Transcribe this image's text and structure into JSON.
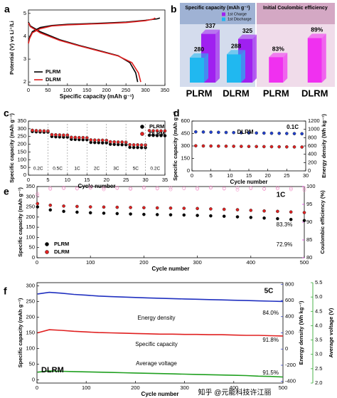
{
  "watermark": "知乎 @元能科技许江丽",
  "chart_data": [
    {
      "type": "line",
      "panel_label": "a",
      "xlabel": "Specific capacity (mAh g⁻¹)",
      "ylabel": "Potential (V) vs Li⁺/Li",
      "xlim": [
        0,
        350
      ],
      "xticks": [
        0,
        50,
        100,
        150,
        200,
        250,
        300,
        350
      ],
      "ylim": [
        1.85,
        5.15
      ],
      "yticks": [
        2,
        3,
        4,
        5
      ],
      "legend": "lower left",
      "series": [
        {
          "name": "PLRM",
          "color": "#000000",
          "x": [
            0,
            3,
            10,
            30,
            60,
            100,
            150,
            200,
            250,
            300,
            330,
            337,
            null,
            0,
            5,
            30,
            80,
            130,
            180,
            230,
            260,
            275,
            280
          ],
          "values": [
            3.72,
            3.95,
            4.2,
            4.38,
            4.47,
            4.52,
            4.55,
            4.58,
            4.62,
            4.7,
            4.76,
            4.8,
            null,
            4.62,
            4.45,
            4.2,
            3.85,
            3.6,
            3.38,
            3.15,
            2.85,
            2.4,
            2.0
          ]
        },
        {
          "name": "DLRM",
          "color": "#e02020",
          "x": [
            0,
            3,
            10,
            30,
            60,
            100,
            150,
            200,
            250,
            300,
            320,
            325,
            null,
            0,
            5,
            30,
            80,
            130,
            180,
            230,
            265,
            282,
            288
          ],
          "values": [
            3.68,
            3.9,
            4.15,
            4.33,
            4.45,
            4.5,
            4.53,
            4.56,
            4.6,
            4.68,
            4.75,
            4.8,
            null,
            4.58,
            4.42,
            4.15,
            3.82,
            3.58,
            3.36,
            3.14,
            2.85,
            2.4,
            2.0
          ]
        }
      ]
    },
    {
      "type": "bar",
      "panel_label": "b",
      "title": "Specific capacity (mAh g⁻¹)",
      "categories": [
        "PLRM",
        "DLRM"
      ],
      "ylim": [
        220,
        350
      ],
      "series": [
        {
          "name": "1st Charge",
          "color": "#a020f0",
          "values": [
            337,
            325
          ]
        },
        {
          "name": "1st Discharge",
          "color": "#20b8f0",
          "values": [
            280,
            288
          ]
        }
      ]
    },
    {
      "type": "bar",
      "title": "Initial Coulombic efficiency",
      "categories": [
        "PLRM",
        "DLRM"
      ],
      "ylim": [
        75,
        92
      ],
      "color": "#f030f0",
      "values": [
        83,
        89
      ],
      "value_labels": [
        "83%",
        "89%"
      ]
    },
    {
      "type": "scatter",
      "panel_label": "c",
      "xlabel": "Cycle number",
      "ylabel": "Specific capacity (mAh g⁻¹)",
      "xlim": [
        0,
        35
      ],
      "xticks": [
        0,
        5,
        10,
        15,
        20,
        25,
        30,
        35
      ],
      "ylim": [
        0,
        350
      ],
      "yticks": [
        0,
        50,
        100,
        150,
        200,
        250,
        300,
        350
      ],
      "legend": "upper right",
      "annotations": [
        "0.2C",
        "0.5C",
        "1C",
        "2C",
        "3C",
        "5C",
        "0.2C"
      ],
      "x": [
        1,
        2,
        3,
        4,
        5,
        6,
        7,
        8,
        9,
        10,
        11,
        12,
        13,
        14,
        15,
        16,
        17,
        18,
        19,
        20,
        21,
        22,
        23,
        24,
        25,
        26,
        27,
        28,
        29,
        30,
        31,
        32,
        33,
        34,
        35
      ],
      "series": [
        {
          "name": "PLRM",
          "color": "#000000",
          "values": [
            282,
            280,
            279,
            278,
            278,
            250,
            248,
            247,
            246,
            246,
            232,
            231,
            230,
            229,
            229,
            212,
            211,
            210,
            209,
            209,
            200,
            199,
            198,
            197,
            197,
            180,
            179,
            179,
            178,
            178,
            258,
            257,
            256,
            256,
            255
          ]
        },
        {
          "name": "DLRM",
          "color": "#e02020",
          "values": [
            290,
            288,
            287,
            286,
            286,
            262,
            261,
            260,
            259,
            259,
            245,
            244,
            243,
            243,
            242,
            228,
            227,
            226,
            226,
            225,
            216,
            215,
            214,
            214,
            213,
            197,
            196,
            196,
            195,
            195,
            288,
            287,
            287,
            286,
            286
          ]
        }
      ]
    },
    {
      "type": "scatter",
      "panel_label": "d",
      "xlabel": "Cycle number",
      "ylabel": "Specific capacity (mAh g⁻¹)",
      "y2label": "Energy density (Wh kg⁻¹)",
      "xlim": [
        0,
        30
      ],
      "xticks": [
        0,
        5,
        10,
        15,
        20,
        25,
        30
      ],
      "ylim": [
        0,
        600
      ],
      "yticks": [
        0,
        150,
        300,
        450,
        600
      ],
      "y2lim": [
        0,
        1200
      ],
      "y2ticks": [
        0,
        200,
        400,
        600,
        800,
        1000,
        1200
      ],
      "annotations": [
        "DLRM",
        "0.1C"
      ],
      "x": [
        1,
        3,
        5,
        7,
        9,
        11,
        13,
        15,
        17,
        19,
        21,
        23,
        25,
        27,
        29
      ],
      "series": [
        {
          "color": "#e02020",
          "values": [
            302,
            300,
            299,
            298,
            297,
            296,
            295,
            294,
            293,
            292,
            291,
            290,
            289,
            288,
            287
          ]
        },
        {
          "color": "#2040d0",
          "axis": "y2",
          "values": [
            940,
            936,
            932,
            928,
            925,
            922,
            918,
            915,
            912,
            909,
            906,
            903,
            900,
            897,
            894
          ]
        }
      ]
    },
    {
      "type": "scatter",
      "panel_label": "e",
      "xlabel": "Cycle number",
      "ylabel": "Specific capacity (mAh g⁻¹)",
      "y2label": "Coulombic efficiency (%)",
      "y2_color": "#e020e0",
      "xlim": [
        0,
        500
      ],
      "xticks": [
        0,
        100,
        200,
        300,
        400,
        500
      ],
      "ylim": [
        0,
        350
      ],
      "yticks": [
        0,
        50,
        100,
        150,
        200,
        250,
        300,
        350
      ],
      "y2lim": [
        80,
        100
      ],
      "y2ticks": [
        80,
        85,
        90,
        95,
        100
      ],
      "legend": "lower left",
      "annotations": [
        "1C",
        "83.3%",
        "72.9%"
      ],
      "x": [
        1,
        25,
        50,
        75,
        100,
        125,
        150,
        175,
        200,
        225,
        250,
        275,
        300,
        325,
        350,
        375,
        400,
        425,
        450,
        475,
        500
      ],
      "series": [
        {
          "name": "PLRM",
          "color": "#000000",
          "values": [
            250,
            235,
            228,
            224,
            221,
            219,
            217,
            215,
            213,
            212,
            211,
            210,
            208,
            206,
            204,
            201,
            198,
            195,
            192,
            188,
            183
          ]
        },
        {
          "name": "DLRM",
          "color": "#e02020",
          "values": [
            266,
            258,
            254,
            252,
            250,
            249,
            248,
            247,
            246,
            245,
            244,
            243,
            242,
            240,
            238,
            236,
            233,
            230,
            228,
            225,
            222
          ]
        },
        {
          "color": "#f080c0",
          "axis": "y2",
          "marker": "open",
          "values": [
            97.5,
            99.3,
            99.5,
            99.4,
            99.6,
            99.2,
            99.5,
            99.3,
            99.6,
            99.4,
            99.2,
            99.5,
            99.3,
            99.6,
            99.4,
            99.1,
            99.5,
            99.3,
            99.4,
            99.2,
            99.0
          ]
        },
        {
          "color": "#f080c0",
          "axis": "y2",
          "marker": "open",
          "values": [
            98.0,
            99.6,
            99.7,
            99.5,
            99.8,
            99.6,
            99.7,
            99.5,
            99.8,
            99.6,
            99.7,
            99.5,
            99.6,
            99.8,
            99.5,
            99.7,
            99.6,
            99.4,
            99.7,
            99.5,
            99.6
          ]
        }
      ]
    },
    {
      "type": "line",
      "panel_label": "f",
      "xlabel": "Cycle number",
      "ylabel": "Specific capacity (mAh g⁻¹)",
      "y2label": "Energy density (Wh kg⁻¹)",
      "y3label": "Average voltage (V)",
      "y2_color": "#2030c0",
      "y3_color": "#20a020",
      "xlim": [
        0,
        500
      ],
      "xticks": [
        0,
        100,
        200,
        300,
        400,
        500
      ],
      "ylim": [
        -10,
        310
      ],
      "yticks": [
        0,
        50,
        100,
        150,
        200,
        250,
        300
      ],
      "y2lim": [
        -420,
        820
      ],
      "y2ticks": [
        -400,
        -200,
        0,
        200,
        400,
        600,
        800
      ],
      "y3lim": [
        2.0,
        5.5
      ],
      "y3ticks": [
        {
          "value": 2,
          "label": "2.0"
        },
        2.5,
        {
          "value": 3,
          "label": "3.0"
        },
        3.5,
        {
          "value": 4,
          "label": "4.0"
        },
        4.5,
        {
          "value": 5,
          "label": "5.0"
        },
        5.5
      ],
      "annotations": [
        "5C",
        "DLRM",
        "Energy density",
        "Specific capacity",
        "Average voltage",
        "84.0%",
        "91.8%",
        "91.5%"
      ],
      "x": [
        1,
        25,
        50,
        75,
        100,
        125,
        150,
        175,
        200,
        225,
        250,
        275,
        300,
        325,
        350,
        375,
        400,
        425,
        450,
        475,
        500
      ],
      "series": [
        {
          "color": "#2030c0",
          "axis": "y2",
          "values": [
            680,
            700,
            690,
            675,
            665,
            655,
            648,
            642,
            637,
            632,
            627,
            623,
            619,
            615,
            611,
            607,
            603,
            599,
            595,
            591,
            588
          ]
        },
        {
          "color": "#e02020",
          "values": [
            150,
            160,
            158,
            155,
            153,
            151,
            150,
            149,
            148,
            147,
            146,
            146,
            145,
            145,
            144,
            144,
            143,
            142,
            142,
            141,
            140
          ]
        },
        {
          "color": "#20a020",
          "axis": "y3",
          "values": [
            2.38,
            2.42,
            2.41,
            2.4,
            2.39,
            2.38,
            2.37,
            2.36,
            2.35,
            2.34,
            2.33,
            2.32,
            2.31,
            2.3,
            2.29,
            2.28,
            2.27,
            2.26,
            2.24,
            2.23,
            2.21
          ]
        }
      ]
    }
  ]
}
